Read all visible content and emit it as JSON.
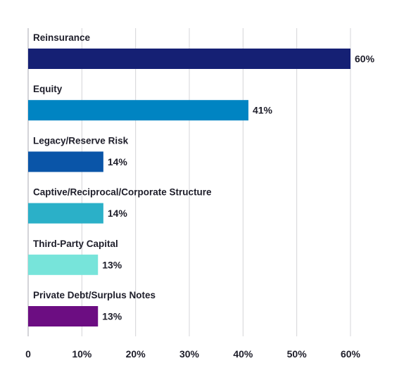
{
  "chart_data": {
    "type": "bar",
    "orientation": "horizontal",
    "categories": [
      "Reinsurance",
      "Equity",
      "Legacy/Reserve Risk",
      "Captive/Reciprocal/Corporate Structure",
      "Third-Party Capital",
      "Private Debt/Surplus Notes"
    ],
    "values": [
      60,
      41,
      14,
      14,
      13,
      13
    ],
    "value_labels": [
      "60%",
      "41%",
      "14%",
      "14%",
      "13%",
      "13%"
    ],
    "colors": [
      "#152074",
      "#0084c2",
      "#0a55a8",
      "#2bb0c8",
      "#77e4da",
      "#6c0d82"
    ],
    "xlim": [
      0,
      60
    ],
    "x_ticks": [
      0,
      10,
      20,
      30,
      40,
      50,
      60
    ],
    "x_tick_labels": [
      "0",
      "10%",
      "20%",
      "30%",
      "40%",
      "50%",
      "60%"
    ],
    "grid": true,
    "title": "",
    "xlabel": "",
    "ylabel": "",
    "legend": "none"
  }
}
